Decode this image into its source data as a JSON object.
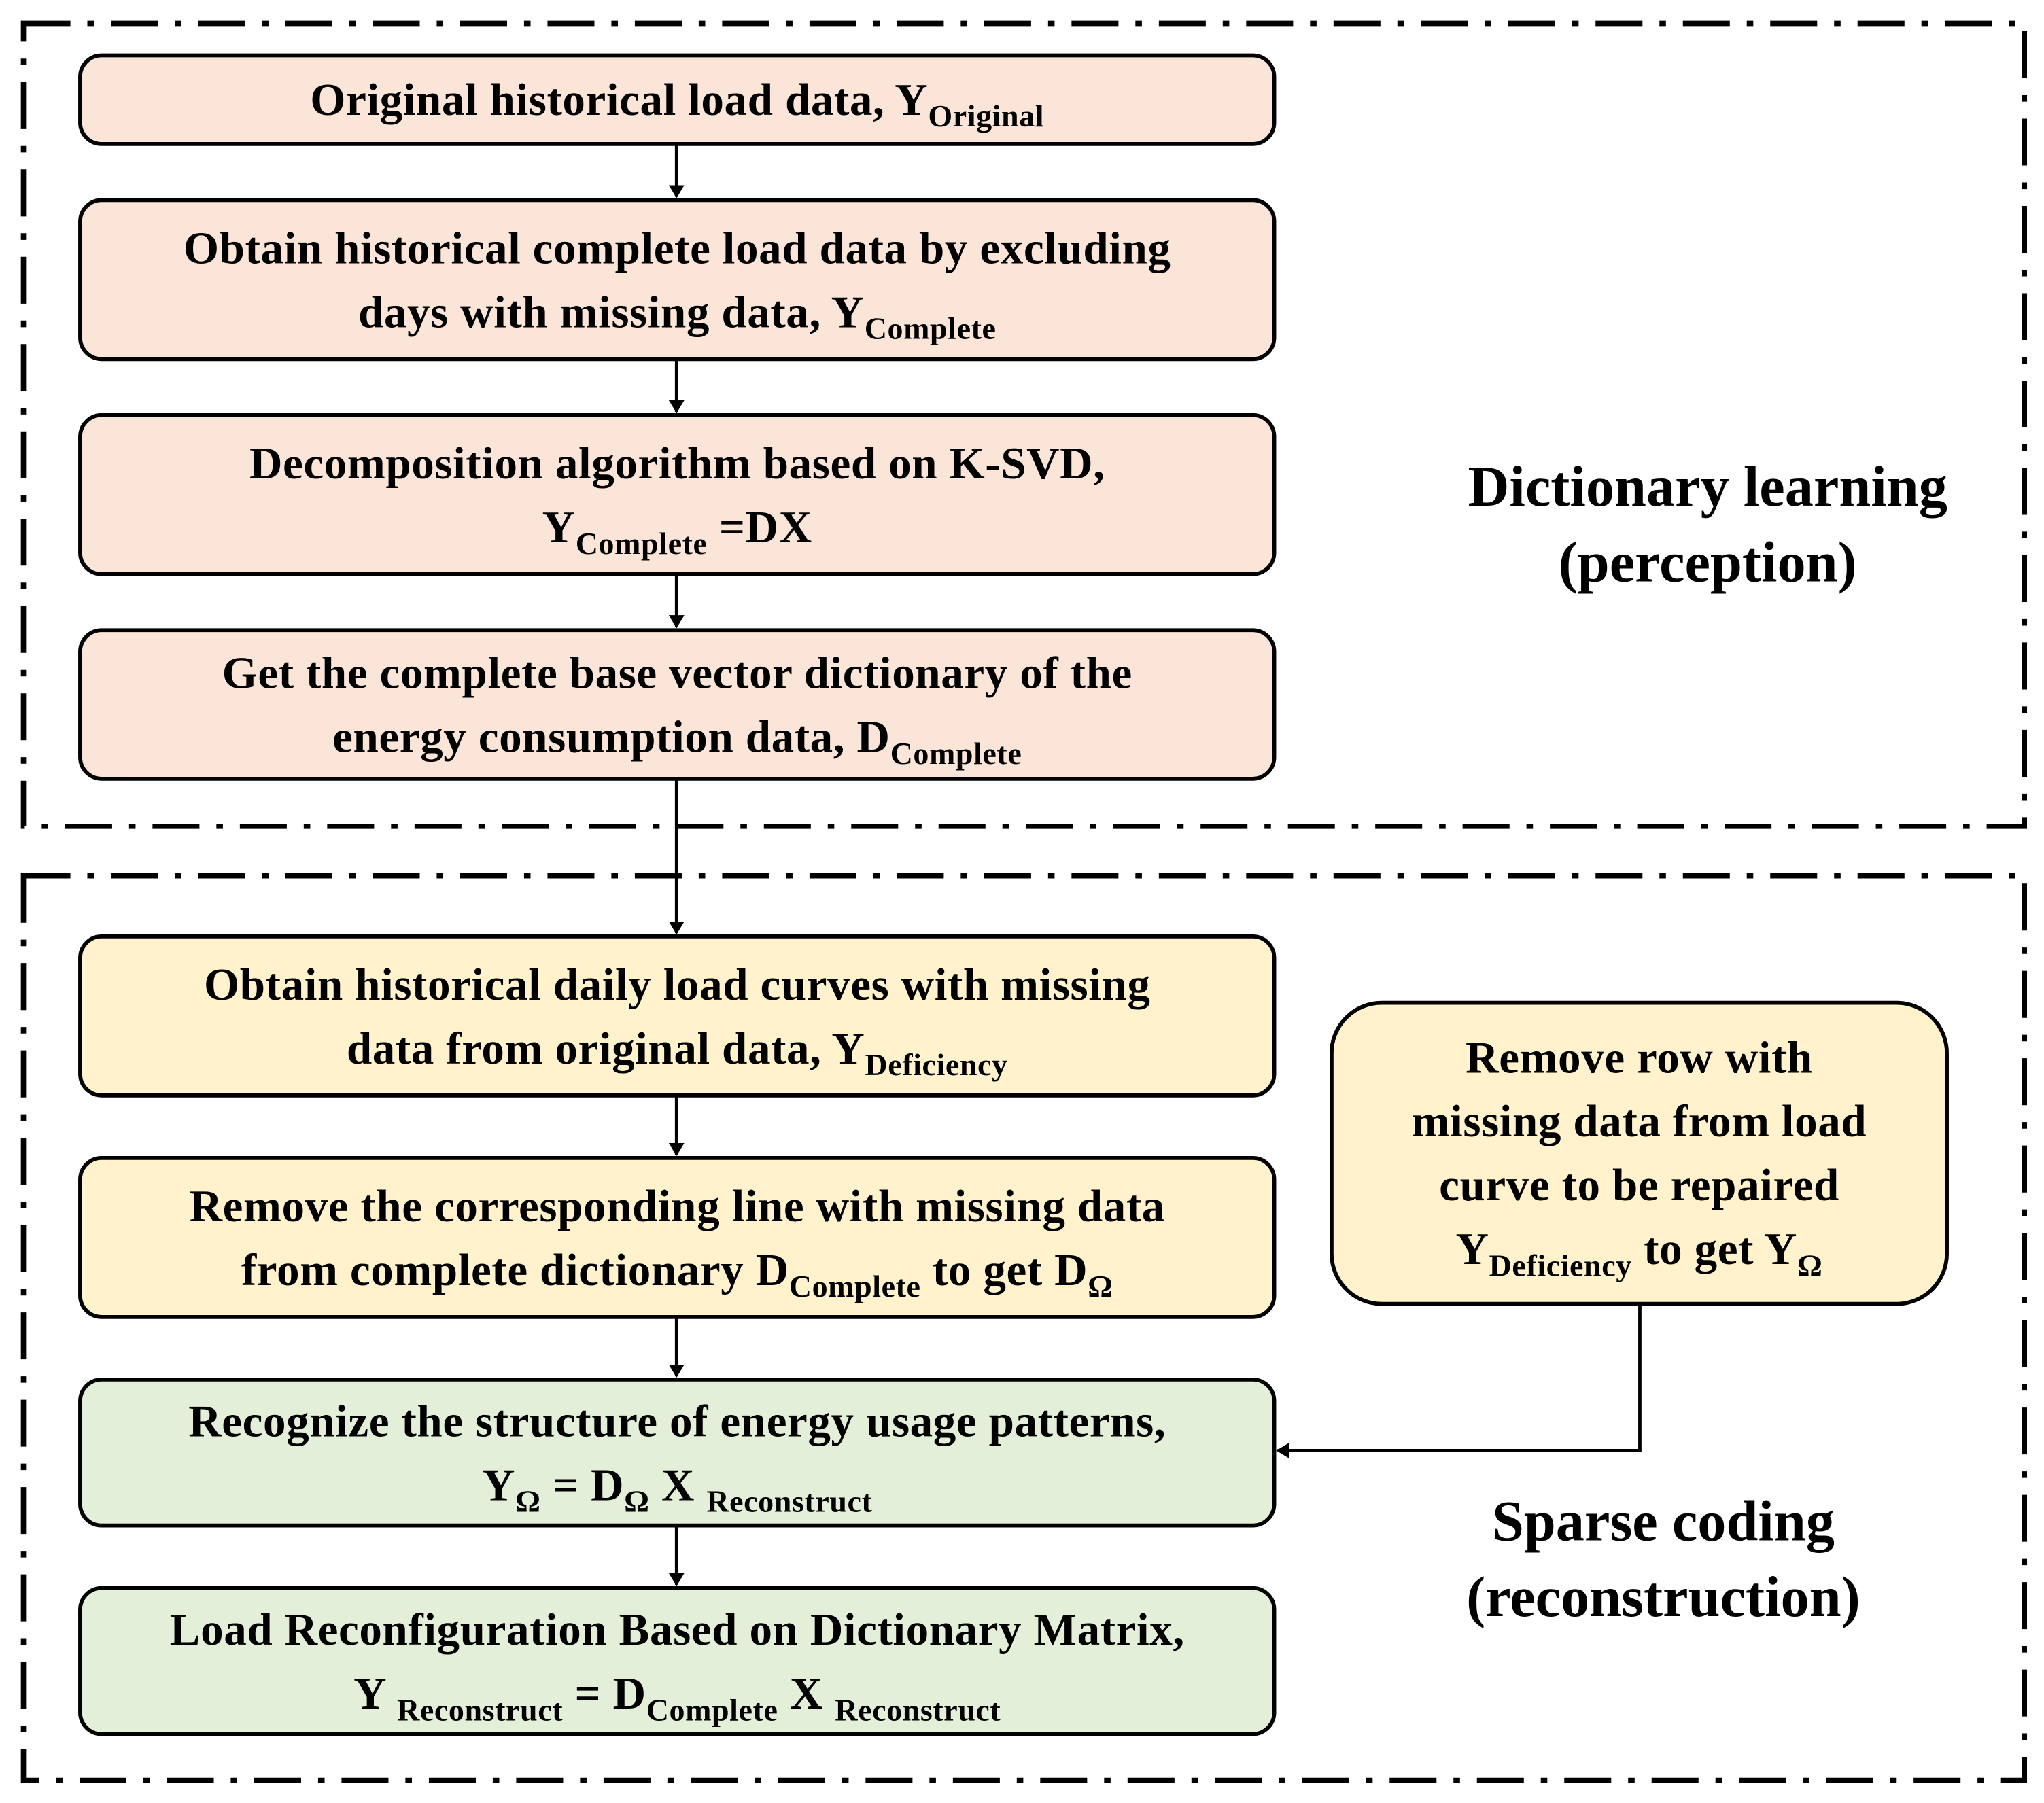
{
  "colors": {
    "learning_box": "#FAE5D8",
    "deficiency_box": "#FFF2CD",
    "reconstruction_box": "#E3EFD9",
    "line": "#000000"
  },
  "sections": {
    "dictionary_learning": {
      "line1": "Dictionary learning",
      "line2": "(perception)"
    },
    "sparse_coding": {
      "line1": "Sparse coding",
      "line2": "(reconstruction)"
    }
  },
  "boxes": [
    {
      "id": "original-data",
      "lines": [
        [
          {
            "t": "Original historical load data, Y"
          },
          {
            "s": "Original"
          }
        ]
      ]
    },
    {
      "id": "complete-data",
      "lines": [
        [
          {
            "t": "Obtain historical complete load data by excluding"
          }
        ],
        [
          {
            "t": "days with missing data, Y"
          },
          {
            "s": "Complete"
          }
        ]
      ]
    },
    {
      "id": "ksvd-decomposition",
      "lines": [
        [
          {
            "t": "Decomposition algorithm based on K-SVD,"
          }
        ],
        [
          {
            "t": "Y"
          },
          {
            "s": "Complete"
          },
          {
            "t": " =DX"
          }
        ]
      ]
    },
    {
      "id": "base-dictionary",
      "lines": [
        [
          {
            "t": "Get the complete base vector dictionary of the"
          }
        ],
        [
          {
            "t": "energy consumption data, D"
          },
          {
            "s": "Complete"
          }
        ]
      ]
    },
    {
      "id": "deficiency-curves",
      "lines": [
        [
          {
            "t": "Obtain historical daily load curves with missing"
          }
        ],
        [
          {
            "t": "data from original data, Y"
          },
          {
            "s": "Deficiency"
          }
        ]
      ]
    },
    {
      "id": "remove-dictionary-line",
      "lines": [
        [
          {
            "t": "Remove the corresponding line with missing data"
          }
        ],
        [
          {
            "t": "from complete dictionary D"
          },
          {
            "s": "Complete"
          },
          {
            "t": " to get D"
          },
          {
            "s": "Ω"
          }
        ]
      ]
    },
    {
      "id": "recognize-patterns",
      "lines": [
        [
          {
            "t": "Recognize the structure of energy usage patterns,"
          }
        ],
        [
          {
            "t": "Y"
          },
          {
            "s": "Ω"
          },
          {
            "t": " = D"
          },
          {
            "s": "Ω"
          },
          {
            "t": " X "
          },
          {
            "s": "Reconstruct"
          }
        ]
      ]
    },
    {
      "id": "load-reconfiguration",
      "lines": [
        [
          {
            "t": "Load Reconfiguration Based on Dictionary Matrix,"
          }
        ],
        [
          {
            "t": "Y "
          },
          {
            "s": "Reconstruct"
          },
          {
            "t": " = D"
          },
          {
            "s": "Complete"
          },
          {
            "t": " X "
          },
          {
            "s": "Reconstruct"
          }
        ]
      ]
    },
    {
      "id": "remove-row",
      "lines": [
        [
          {
            "t": "Remove row with"
          }
        ],
        [
          {
            "t": "missing data from load"
          }
        ],
        [
          {
            "t": "curve to be repaired"
          }
        ],
        [
          {
            "t": "Y"
          },
          {
            "s": "Deficiency"
          },
          {
            "t": " to get Y"
          },
          {
            "s": "Ω"
          }
        ]
      ]
    }
  ]
}
